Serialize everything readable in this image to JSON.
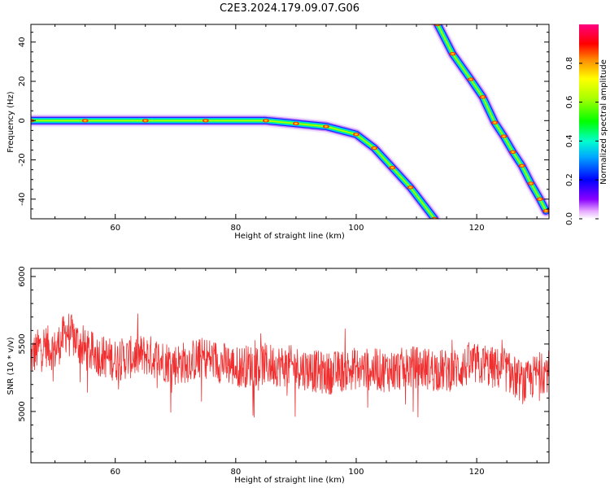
{
  "figure_title": "C2E3.2024.179.09.07.G06",
  "chart_data": [
    {
      "type": "heatmap",
      "xlabel": "Height of straight line (km)",
      "ylabel": "Frequency (Hz)",
      "xlim": [
        46,
        132
      ],
      "ylim": [
        -50,
        49
      ],
      "xticks": [
        60,
        80,
        100,
        120
      ],
      "yticks": [
        -40,
        -20,
        0,
        20,
        40
      ],
      "ytick_labels": [
        "-40",
        "-20",
        "0",
        "20",
        "40"
      ],
      "colorbar": {
        "label": "Normalized spectral amplitude",
        "range": [
          0,
          1
        ],
        "ticks": [
          "0.0",
          "0.2",
          "0.4",
          "0.6",
          "0.8"
        ],
        "colormap": "rainbow (violet-blue-cyan-green-yellow-red-magenta)"
      },
      "traces": [
        {
          "x": [
            46,
            55,
            65,
            75,
            85,
            90,
            95,
            100,
            103,
            106,
            109,
            113
          ],
          "y": [
            0,
            0,
            0,
            0,
            0,
            -1.5,
            -3,
            -7,
            -14,
            -24,
            -34,
            -50
          ]
        },
        {
          "x": [
            113.5,
            116,
            119,
            121,
            123,
            124.5,
            126,
            127.5,
            129,
            130.5,
            131.5
          ],
          "y": [
            49,
            34,
            21,
            12,
            -1,
            -8,
            -16,
            -23,
            -32,
            -40,
            -46
          ]
        }
      ]
    },
    {
      "type": "line",
      "xlabel": "Height of straight line (km)",
      "ylabel": "SNR (10 * v/v)",
      "xlim": [
        46,
        132
      ],
      "ylim": [
        4620,
        6060
      ],
      "xticks": [
        60,
        80,
        100,
        120
      ],
      "yticks": [
        5000,
        5500,
        6000
      ],
      "series": [
        {
          "color": "#f03030",
          "x": [
            46,
            48,
            50,
            52,
            55,
            60,
            65,
            70,
            75,
            80,
            85,
            90,
            95,
            100,
            105,
            110,
            115,
            120,
            125,
            128,
            130,
            131.5
          ],
          "y": [
            5400,
            5500,
            5450,
            5600,
            5450,
            5380,
            5420,
            5350,
            5400,
            5330,
            5350,
            5330,
            5280,
            5320,
            5300,
            5330,
            5300,
            5350,
            5300,
            5200,
            5280,
            5300
          ]
        }
      ]
    }
  ]
}
